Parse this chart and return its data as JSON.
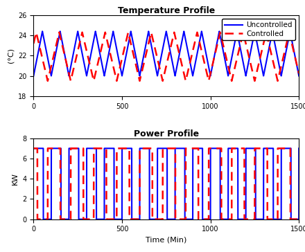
{
  "title_temp": "Temperature Profile",
  "title_power": "Power Profile",
  "xlabel": "Time (Min)",
  "ylabel_temp": "(°C)",
  "ylabel_power": "KW",
  "xlim": [
    0,
    1500
  ],
  "ylim_temp": [
    18,
    26
  ],
  "ylim_power": [
    0,
    8
  ],
  "xticks": [
    0,
    500,
    1000,
    1500
  ],
  "yticks_temp": [
    18,
    20,
    22,
    24,
    26
  ],
  "yticks_power": [
    0,
    2,
    4,
    6,
    8
  ],
  "color_uncontrolled": "#0000FF",
  "color_controlled": "#FF0000",
  "lw_solid": 1.5,
  "lw_dashed": 1.8,
  "legend_labels": [
    "Uncontrolled",
    "Controlled"
  ],
  "temp_period_unc": 100,
  "temp_period_con": 130,
  "temp_min_unc": 20.0,
  "temp_max_unc": 24.4,
  "temp_min_con": 19.5,
  "temp_max_con": 24.3,
  "power_on": 7.0,
  "power_off": 0.0,
  "power_period_unc": 100,
  "power_period_con": 130,
  "power_duty_unc": 0.55,
  "power_duty_con": 0.55,
  "phase_shift_con_temp": 50,
  "phase_shift_con_power": 50,
  "bg_color": "#ffffff",
  "title_fontsize": 9,
  "tick_fontsize": 7,
  "label_fontsize": 8,
  "legend_fontsize": 7.5
}
